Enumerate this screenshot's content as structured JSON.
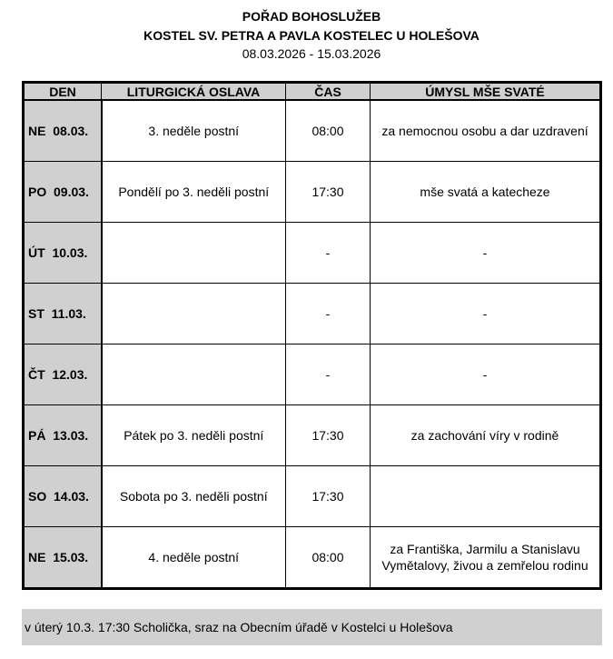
{
  "header": {
    "title": "POŘAD BOHOSLUŽEB",
    "church": "KOSTEL SV. PETRA A PAVLA KOSTELEC U HOLEŠOVA",
    "period": "08.03.2026 - 15.03.2026"
  },
  "table": {
    "columns": [
      "DEN",
      "LITURGICKÁ OSLAVA",
      "ČAS",
      "ÚMYSL MŠE SVATÉ"
    ],
    "rows": [
      {
        "day": "NE  08.03.",
        "celebration": "3. neděle postní",
        "time": "08:00",
        "intention": "za nemocnou osobu a dar uzdravení"
      },
      {
        "day": "PO  09.03.",
        "celebration": "Pondělí po 3. neděli postní",
        "time": "17:30",
        "intention": "mše svatá a katecheze"
      },
      {
        "day": "ÚT  10.03.",
        "celebration": "",
        "time": "-",
        "intention": "-"
      },
      {
        "day": "ST  11.03.",
        "celebration": "",
        "time": "-",
        "intention": "-"
      },
      {
        "day": "ČT  12.03.",
        "celebration": "",
        "time": "-",
        "intention": "-"
      },
      {
        "day": "PÁ  13.03.",
        "celebration": "Pátek po 3. neděli postní",
        "time": "17:30",
        "intention": "za zachování víry v rodině"
      },
      {
        "day": "SO  14.03.",
        "celebration": "Sobota po 3. neděli postní",
        "time": "17:30",
        "intention": ""
      },
      {
        "day": "NE  15.03.",
        "celebration": "4. neděle postní",
        "time": "08:00",
        "intention": "za Františka, Jarmilu a Stanislavu Vymětalovy, živou a zemřelou rodinu"
      }
    ]
  },
  "note": "v úterý 10.3. 17:30 Scholička, sraz na Obecním úřadě v Kostelci u Holešova",
  "colors": {
    "header_fill": "#d0d0d0",
    "border": "#000000"
  }
}
